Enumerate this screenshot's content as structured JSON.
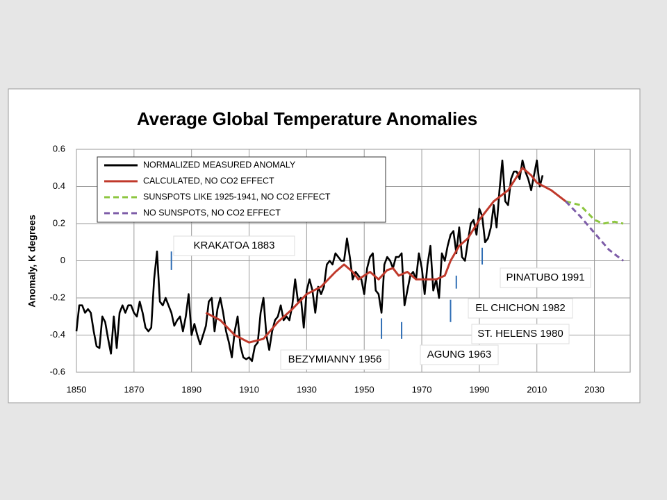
{
  "chart_data": {
    "type": "line",
    "title": "Average Global Temperature Anomalies",
    "y_label": "Anomaly, K degrees",
    "xlim": [
      1850,
      2040
    ],
    "ylim": [
      -0.6,
      0.6
    ],
    "xticks": [
      1850,
      1870,
      1890,
      1910,
      1930,
      1950,
      1970,
      1990,
      2010,
      2030
    ],
    "yticks": [
      -0.6,
      -0.4,
      -0.2,
      0,
      0.2,
      0.4,
      0.6
    ],
    "grid": true,
    "legend": "upper left",
    "series": [
      {
        "name": "NORMALIZED MEASURED ANOMALY",
        "color": "#000000",
        "dash": "solid",
        "x": [
          1850,
          1851,
          1852,
          1853,
          1854,
          1855,
          1856,
          1857,
          1858,
          1859,
          1860,
          1861,
          1862,
          1863,
          1864,
          1865,
          1866,
          1867,
          1868,
          1869,
          1870,
          1871,
          1872,
          1873,
          1874,
          1875,
          1876,
          1877,
          1878,
          1879,
          1880,
          1881,
          1882,
          1883,
          1884,
          1885,
          1886,
          1887,
          1888,
          1889,
          1890,
          1891,
          1892,
          1893,
          1894,
          1895,
          1896,
          1897,
          1898,
          1899,
          1900,
          1901,
          1902,
          1903,
          1904,
          1905,
          1906,
          1907,
          1908,
          1909,
          1910,
          1911,
          1912,
          1913,
          1914,
          1915,
          1916,
          1917,
          1918,
          1919,
          1920,
          1921,
          1922,
          1923,
          1924,
          1925,
          1926,
          1927,
          1928,
          1929,
          1930,
          1931,
          1932,
          1933,
          1934,
          1935,
          1936,
          1937,
          1938,
          1939,
          1940,
          1941,
          1942,
          1943,
          1944,
          1945,
          1946,
          1947,
          1948,
          1949,
          1950,
          1951,
          1952,
          1953,
          1954,
          1955,
          1956,
          1957,
          1958,
          1959,
          1960,
          1961,
          1962,
          1963,
          1964,
          1965,
          1966,
          1967,
          1968,
          1969,
          1970,
          1971,
          1972,
          1973,
          1974,
          1975,
          1976,
          1977,
          1978,
          1979,
          1980,
          1981,
          1982,
          1983,
          1984,
          1985,
          1986,
          1987,
          1988,
          1989,
          1990,
          1991,
          1992,
          1993,
          1994,
          1995,
          1996,
          1997,
          1998,
          1999,
          2000,
          2001,
          2002,
          2003,
          2004,
          2005,
          2006,
          2007,
          2008,
          2009,
          2010,
          2011,
          2012
        ],
        "values": [
          -0.38,
          -0.24,
          -0.24,
          -0.28,
          -0.26,
          -0.28,
          -0.38,
          -0.46,
          -0.47,
          -0.3,
          -0.33,
          -0.42,
          -0.5,
          -0.3,
          -0.47,
          -0.28,
          -0.24,
          -0.28,
          -0.24,
          -0.24,
          -0.28,
          -0.3,
          -0.22,
          -0.28,
          -0.36,
          -0.38,
          -0.36,
          -0.1,
          0.05,
          -0.22,
          -0.24,
          -0.2,
          -0.24,
          -0.28,
          -0.35,
          -0.32,
          -0.3,
          -0.38,
          -0.3,
          -0.18,
          -0.4,
          -0.34,
          -0.4,
          -0.45,
          -0.4,
          -0.35,
          -0.22,
          -0.2,
          -0.38,
          -0.26,
          -0.2,
          -0.28,
          -0.38,
          -0.44,
          -0.52,
          -0.38,
          -0.3,
          -0.46,
          -0.52,
          -0.53,
          -0.52,
          -0.54,
          -0.46,
          -0.44,
          -0.28,
          -0.2,
          -0.4,
          -0.48,
          -0.38,
          -0.32,
          -0.3,
          -0.24,
          -0.32,
          -0.3,
          -0.32,
          -0.24,
          -0.1,
          -0.22,
          -0.2,
          -0.36,
          -0.16,
          -0.1,
          -0.16,
          -0.28,
          -0.14,
          -0.18,
          -0.14,
          -0.02,
          0,
          -0.02,
          0.04,
          0.02,
          0,
          0,
          0.12,
          0.02,
          -0.1,
          -0.06,
          -0.08,
          -0.1,
          -0.18,
          -0.04,
          0.02,
          0.04,
          -0.16,
          -0.18,
          -0.28,
          -0.02,
          0.02,
          0,
          -0.04,
          0.02,
          0.02,
          0.04,
          -0.24,
          -0.16,
          -0.08,
          -0.06,
          -0.1,
          0.04,
          -0.04,
          -0.18,
          -0.02,
          0.08,
          -0.16,
          -0.1,
          -0.2,
          0.04,
          0,
          0.08,
          0.14,
          0.16,
          0.04,
          0.18,
          0.02,
          0,
          0.1,
          0.2,
          0.22,
          0.14,
          0.28,
          0.24,
          0.1,
          0.12,
          0.18,
          0.3,
          0.18,
          0.38,
          0.54,
          0.32,
          0.3,
          0.44,
          0.48,
          0.48,
          0.44,
          0.54,
          0.48,
          0.44,
          0.38,
          0.46,
          0.54,
          0.4,
          0.46
        ]
      },
      {
        "name": "CALCULATED, NO CO2 EFFECT",
        "color": "#c0392b",
        "dash": "solid",
        "x": [
          1895,
          1900,
          1905,
          1910,
          1915,
          1920,
          1925,
          1930,
          1935,
          1940,
          1943,
          1946,
          1948,
          1950,
          1952,
          1955,
          1958,
          1960,
          1962,
          1965,
          1968,
          1972,
          1975,
          1978,
          1980,
          1983,
          1986,
          1990,
          1995,
          2000,
          2005,
          2008,
          2010,
          2015,
          2020
        ],
        "values": [
          -0.28,
          -0.32,
          -0.4,
          -0.44,
          -0.42,
          -0.33,
          -0.26,
          -0.18,
          -0.14,
          -0.06,
          -0.02,
          -0.06,
          -0.1,
          -0.08,
          -0.06,
          -0.1,
          -0.05,
          -0.04,
          -0.08,
          -0.06,
          -0.1,
          -0.1,
          -0.1,
          -0.08,
          0,
          0.08,
          0.12,
          0.22,
          0.32,
          0.38,
          0.5,
          0.46,
          0.42,
          0.38,
          0.32
        ]
      },
      {
        "name": "SUNSPOTS LIKE 1925-1941, NO CO2 EFFECT",
        "color": "#8dc63f",
        "dash": "dashed",
        "x": [
          2020,
          2025,
          2030,
          2033,
          2037,
          2040
        ],
        "values": [
          0.32,
          0.3,
          0.22,
          0.2,
          0.21,
          0.2
        ]
      },
      {
        "name": "NO SUNSPOTS, NO CO2 EFFECT",
        "color": "#7d5ca8",
        "dash": "dashed",
        "x": [
          2020,
          2025,
          2030,
          2035,
          2040
        ],
        "values": [
          0.32,
          0.24,
          0.15,
          0.06,
          0
        ]
      }
    ],
    "annotations": [
      {
        "text": "KRAKATOA 1883",
        "year": 1883,
        "marker": [
          0.05,
          -0.05
        ]
      },
      {
        "text": "BEZYMIANNY 1956",
        "year": 1956,
        "marker": [
          -0.31,
          -0.42
        ]
      },
      {
        "text": "AGUNG 1963",
        "year": 1963,
        "marker": [
          -0.33,
          -0.42
        ]
      },
      {
        "text": "ST. HELENS 1980",
        "year": 1980,
        "marker": [
          -0.21,
          -0.33
        ]
      },
      {
        "text": "EL CHICHON 1982",
        "year": 1982,
        "marker": [
          -0.08,
          -0.15
        ]
      },
      {
        "text": "PINATUBO 1991",
        "year": 1991,
        "marker": [
          0.07,
          -0.02
        ]
      }
    ]
  }
}
